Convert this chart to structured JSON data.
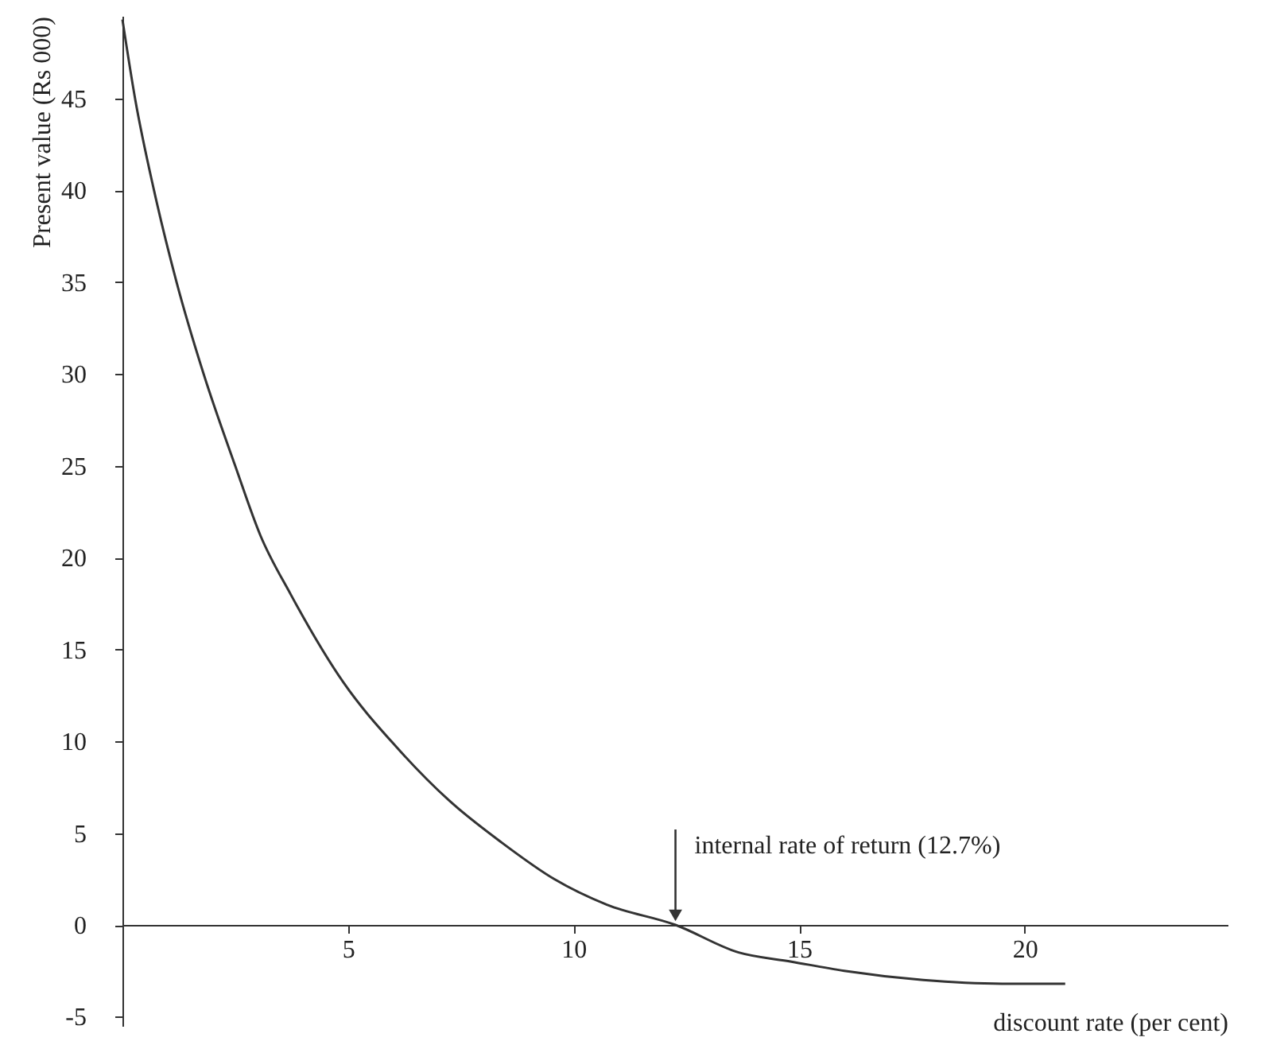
{
  "chart_data": {
    "type": "line",
    "xlabel": "discount rate (per cent)",
    "ylabel": "Present value (Rs 000)",
    "xlim": [
      0,
      24.5
    ],
    "ylim": [
      -5.5,
      49.5
    ],
    "xticks": [
      5,
      10,
      15,
      20
    ],
    "yticks": [
      -5,
      0,
      5,
      10,
      15,
      20,
      25,
      30,
      35,
      40,
      45
    ],
    "grid": false,
    "marker": "none",
    "line_style": "solid",
    "series": [
      {
        "color": "#333333",
        "x": [
          0,
          0.28,
          0.7,
          1.2,
          1.8,
          2.5,
          3.06,
          3.73,
          4.9,
          6.07,
          7.23,
          8.4,
          9.57,
          10.74,
          12.26,
          13.66,
          14.83,
          16.0,
          17.75,
          19.5,
          20.9
        ],
        "values": [
          49.3,
          45,
          40,
          35,
          30,
          25,
          21.2,
          18.0,
          13.2,
          9.7,
          6.8,
          4.5,
          2.5,
          1.1,
          0,
          -1.5,
          -2.0,
          -2.5,
          -3.0,
          -3.2,
          -3.2
        ]
      }
    ],
    "annotations": [
      {
        "text": "internal rate of return (12.7%)",
        "x": 12.26,
        "y": 0
      }
    ]
  }
}
